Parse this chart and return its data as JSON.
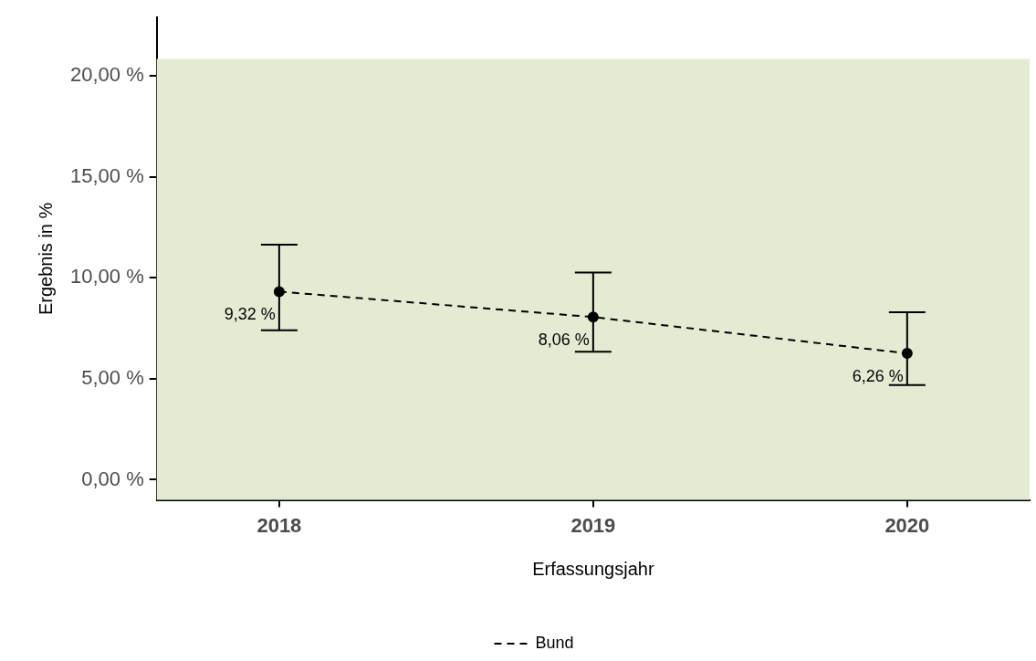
{
  "chart_data": {
    "type": "line",
    "xlabel": "Erfassungsjahr",
    "ylabel": "Ergebnis in %",
    "categories": [
      "2018",
      "2019",
      "2020"
    ],
    "series": [
      {
        "name": "Bund",
        "color": "#000000",
        "values": [
          9.32,
          8.06,
          6.26
        ],
        "errors": [
          [
            7.41,
            11.65
          ],
          [
            6.34,
            10.27
          ],
          [
            4.69,
            8.3
          ]
        ],
        "value_labels": [
          "9,32 %",
          "8,06 %",
          "6,26 %"
        ]
      }
    ],
    "ylim": [
      -1,
      22.9
    ],
    "yticks": [
      {
        "value": 0,
        "label": "0,00 %"
      },
      {
        "value": 5,
        "label": "5,00 %"
      },
      {
        "value": 10,
        "label": "10,00 %"
      },
      {
        "value": 15,
        "label": "15,00 %"
      },
      {
        "value": 20,
        "label": "20,00 %"
      }
    ],
    "bands": [
      {
        "axis": "y",
        "from": -1,
        "to": 20.85,
        "color": "#e3ebd3"
      }
    ],
    "grid": false,
    "legend": "bottom",
    "marker": "circle",
    "line_style": "dashed"
  }
}
